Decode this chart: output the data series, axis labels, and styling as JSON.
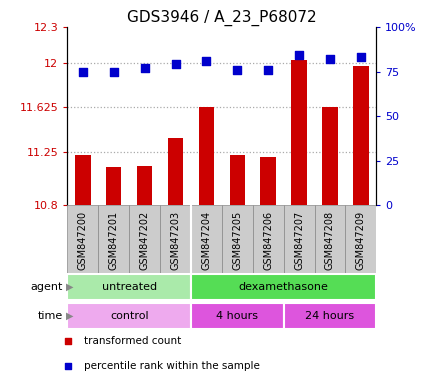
{
  "title": "GDS3946 / A_23_P68072",
  "samples": [
    "GSM847200",
    "GSM847201",
    "GSM847202",
    "GSM847203",
    "GSM847204",
    "GSM847205",
    "GSM847206",
    "GSM847207",
    "GSM847208",
    "GSM847209"
  ],
  "transformed_count": [
    11.22,
    11.12,
    11.13,
    11.37,
    11.625,
    11.22,
    11.21,
    12.02,
    11.625,
    11.97
  ],
  "percentile_rank": [
    75,
    75,
    77,
    79,
    81,
    76,
    76,
    84,
    82,
    83
  ],
  "ylim_left": [
    10.8,
    12.3
  ],
  "ylim_right": [
    0,
    100
  ],
  "yticks_left": [
    10.8,
    11.25,
    11.625,
    12.0,
    12.3
  ],
  "ytick_labels_left": [
    "10.8",
    "11.25",
    "11.625",
    "12",
    "12.3"
  ],
  "yticks_right": [
    0,
    25,
    50,
    75,
    100
  ],
  "ytick_labels_right": [
    "0",
    "25",
    "50",
    "75",
    "100%"
  ],
  "bar_color": "#cc0000",
  "dot_color": "#0000cc",
  "hline_y": [
    11.25,
    11.625,
    12.0
  ],
  "agent_groups": [
    {
      "label": "untreated",
      "start": 0,
      "end": 4,
      "color": "#aaeaaa"
    },
    {
      "label": "dexamethasone",
      "start": 4,
      "end": 10,
      "color": "#55dd55"
    }
  ],
  "time_groups": [
    {
      "label": "control",
      "start": 0,
      "end": 4,
      "color": "#eeaaee"
    },
    {
      "label": "4 hours",
      "start": 4,
      "end": 7,
      "color": "#dd55dd"
    },
    {
      "label": "24 hours",
      "start": 7,
      "end": 10,
      "color": "#dd55dd"
    }
  ],
  "legend_items": [
    {
      "label": "transformed count",
      "color": "#cc0000"
    },
    {
      "label": "percentile rank within the sample",
      "color": "#0000cc"
    }
  ],
  "bar_width": 0.5,
  "dot_size": 35,
  "hline_color": "#aaaaaa",
  "hline_dot_color": "#aaaaaa",
  "tick_color_left": "#cc0000",
  "tick_color_right": "#0000cc",
  "title_fontsize": 11,
  "tick_fontsize": 8,
  "xtick_fontsize": 7,
  "annotation_fontsize": 8,
  "xlabel_box_color": "#cccccc",
  "xlabel_box_border": "#888888"
}
